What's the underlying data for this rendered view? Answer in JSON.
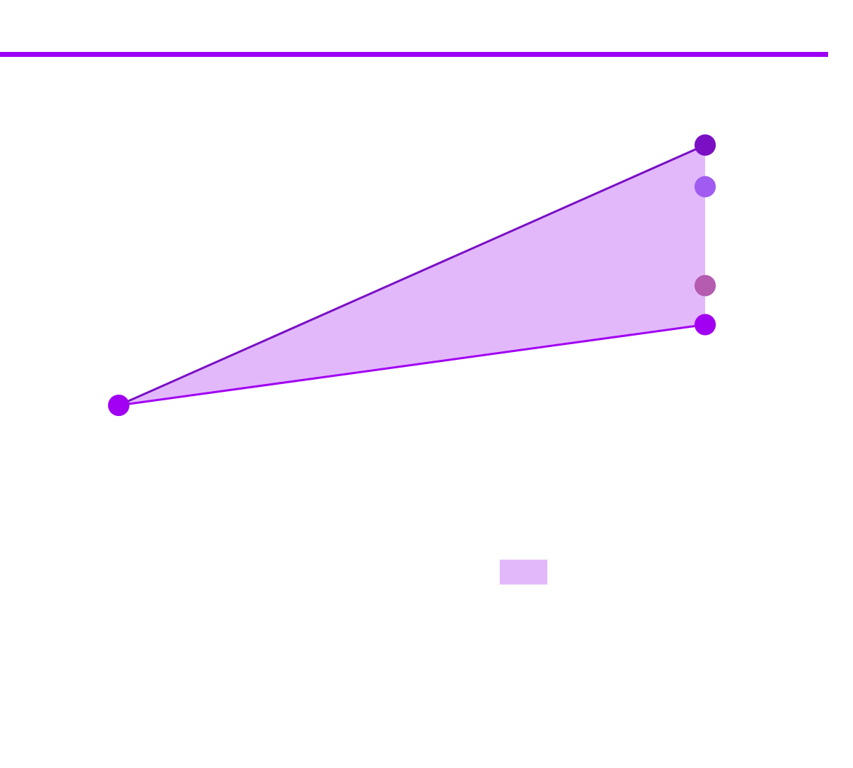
{
  "chart_data": {
    "type": "fan",
    "x": [
      0,
      1
    ],
    "xlim": [
      0,
      1
    ],
    "ylim": [
      0,
      100
    ],
    "band": {
      "between": [
        0,
        1
      ],
      "color": "#e2b8fb"
    },
    "series": [
      {
        "color": "#7a0fc4",
        "values": [
          0,
          100
        ],
        "line": true
      },
      {
        "color": "#a100f2",
        "values": [
          0,
          31
        ],
        "line": true
      },
      {
        "color": "#a05cf0",
        "values": [
          null,
          84
        ],
        "line": false
      },
      {
        "color": "#b55bb0",
        "values": [
          null,
          46
        ],
        "line": false
      }
    ]
  }
}
